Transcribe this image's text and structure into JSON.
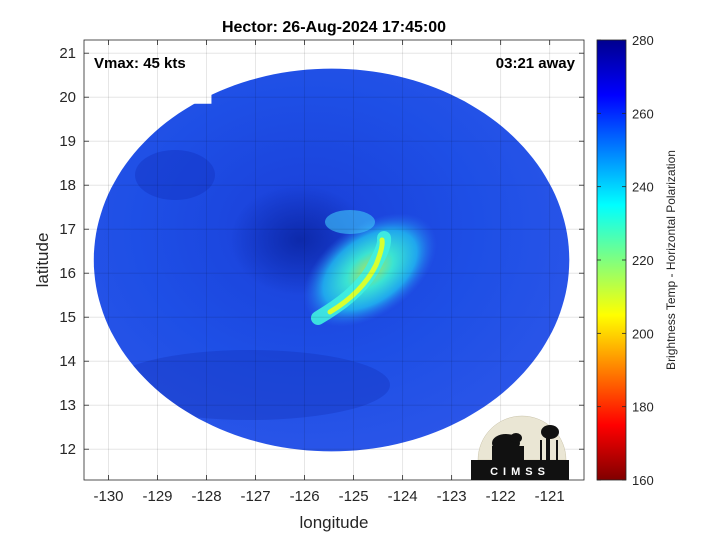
{
  "chart_data": {
    "type": "heatmap",
    "title": "Hector: 26-Aug-2024 17:45:00",
    "xlabel": "longitude",
    "ylabel": "latitude",
    "xlim": [
      -130.5,
      -120.3
    ],
    "ylim": [
      11.3,
      21.3
    ],
    "x_ticks": [
      -130,
      -129,
      -128,
      -127,
      -126,
      -125,
      -124,
      -123,
      -122,
      -121
    ],
    "x_tick_labels": [
      "-130",
      "-129",
      "-128",
      "-127",
      "-126",
      "-125",
      "-124",
      "-123",
      "-122",
      "-121"
    ],
    "y_ticks": [
      12,
      13,
      14,
      15,
      16,
      17,
      18,
      19,
      20,
      21
    ],
    "y_tick_labels": [
      "12",
      "13",
      "14",
      "15",
      "16",
      "17",
      "18",
      "19",
      "20",
      "21"
    ],
    "grid": true,
    "annotations": {
      "vmax": "Vmax: 45 kts",
      "time_away": "03:21 away"
    },
    "colorbar": {
      "label": "Brightness Temp - Horizontal Polarization",
      "min": 160,
      "max": 280,
      "ticks": [
        160,
        180,
        200,
        220,
        240,
        260,
        280
      ],
      "tick_labels": [
        "160",
        "180",
        "200",
        "220",
        "240",
        "260",
        "280"
      ],
      "colormap": "jet",
      "placement": "right"
    },
    "swath": {
      "center_lon": -125.45,
      "center_lat": 16.3,
      "background_temp": 261,
      "eye_dark_region": {
        "lon": -125.8,
        "lat": 16.8,
        "temp": 272
      },
      "min_temp": 208,
      "min_temp_location": {
        "lon": -124.5,
        "lat": 16.6
      }
    },
    "logo": {
      "text": "CIMSS"
    }
  }
}
